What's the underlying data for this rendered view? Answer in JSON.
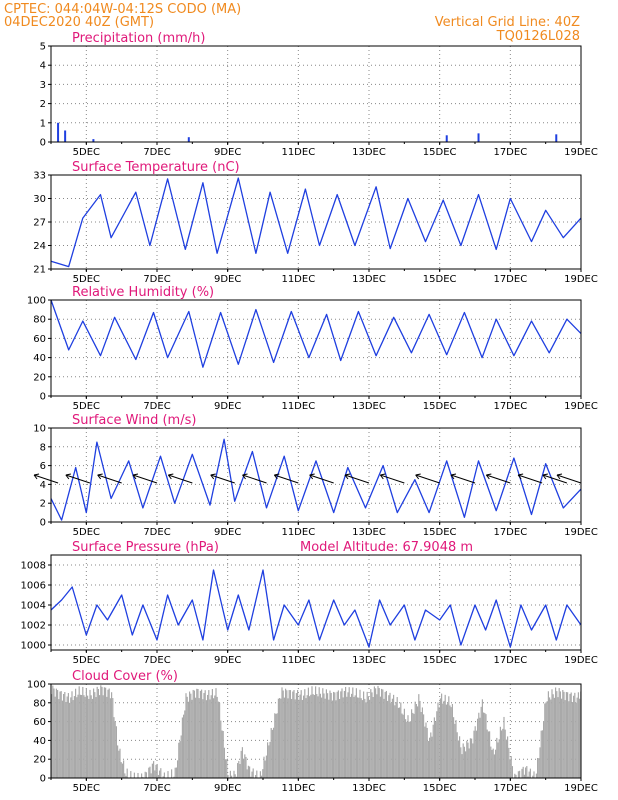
{
  "header": {
    "line1": "CPTEC:   044:04W-04:12S   CODO (MA)",
    "line2": "04DEC2020 40Z (GMT)",
    "right1": "Vertical Grid Line: 40Z",
    "right2": "TQ0126L028"
  },
  "colors": {
    "header": "#f08a1f",
    "title": "#e0197a",
    "line": "#1f3fe0",
    "cloud": "#a9a9a9",
    "grid": "#888888"
  },
  "chart_data": [
    {
      "id": "precip",
      "type": "bar",
      "title": "Precipitation (mm/h)",
      "ylim": [
        0,
        5
      ],
      "yticks": [
        "0",
        "1",
        "2",
        "3",
        "4",
        "5"
      ],
      "xticks": [
        "5DEC",
        "7DEC",
        "9DEC",
        "11DEC",
        "13DEC",
        "15DEC",
        "17DEC",
        "19DEC"
      ],
      "x": [
        4.2,
        4.4,
        5.2,
        7.9,
        15.2,
        16.1,
        18.3
      ],
      "values": [
        1.0,
        0.6,
        0.15,
        0.25,
        0.35,
        0.45,
        0.4
      ]
    },
    {
      "id": "temp",
      "type": "line",
      "title": "Surface Temperature (nC)",
      "ylim": [
        21,
        33
      ],
      "yticks": [
        "21",
        "24",
        "27",
        "30",
        "33"
      ],
      "xticks": [
        "5DEC",
        "7DEC",
        "9DEC",
        "11DEC",
        "13DEC",
        "15DEC",
        "17DEC",
        "19DEC"
      ],
      "x": [
        4.0,
        4.5,
        4.9,
        5.4,
        5.7,
        6.4,
        6.8,
        7.3,
        7.8,
        8.3,
        8.7,
        9.3,
        9.8,
        10.2,
        10.7,
        11.2,
        11.6,
        12.1,
        12.6,
        13.2,
        13.6,
        14.1,
        14.6,
        15.1,
        15.6,
        16.1,
        16.6,
        17.0,
        17.6,
        18.0,
        18.5,
        19.0
      ],
      "values": [
        22,
        21.3,
        27.5,
        30.5,
        25,
        30.8,
        24,
        32.5,
        23.5,
        32,
        23,
        32.6,
        23,
        30.8,
        23,
        31.2,
        24,
        30.5,
        24,
        31.5,
        23.6,
        30,
        24.5,
        29.8,
        24,
        30.5,
        23.5,
        30,
        24.5,
        28.5,
        25,
        27.5
      ]
    },
    {
      "id": "rh",
      "type": "line",
      "title": "Relative Humidity (%)",
      "ylim": [
        0,
        100
      ],
      "yticks": [
        "0",
        "20",
        "40",
        "60",
        "80",
        "100"
      ],
      "xticks": [
        "5DEC",
        "7DEC",
        "9DEC",
        "11DEC",
        "13DEC",
        "15DEC",
        "17DEC",
        "19DEC"
      ],
      "x": [
        4.0,
        4.5,
        4.9,
        5.4,
        5.8,
        6.4,
        6.9,
        7.3,
        7.9,
        8.3,
        8.8,
        9.3,
        9.8,
        10.3,
        10.8,
        11.3,
        11.8,
        12.2,
        12.7,
        13.2,
        13.7,
        14.2,
        14.7,
        15.2,
        15.7,
        16.2,
        16.6,
        17.1,
        17.6,
        18.1,
        18.6,
        19.0
      ],
      "values": [
        100,
        48,
        78,
        42,
        82,
        38,
        87,
        40,
        88,
        30,
        87,
        33,
        90,
        35,
        88,
        40,
        85,
        37,
        88,
        42,
        82,
        45,
        85,
        43,
        87,
        40,
        80,
        42,
        78,
        45,
        80,
        65
      ]
    },
    {
      "id": "wind",
      "type": "line",
      "title": "Surface Wind (m/s)",
      "ylim": [
        0,
        10
      ],
      "yticks": [
        "0",
        "2",
        "4",
        "6",
        "8",
        "10"
      ],
      "xticks": [
        "5DEC",
        "7DEC",
        "9DEC",
        "11DEC",
        "13DEC",
        "15DEC",
        "17DEC",
        "19DEC"
      ],
      "x": [
        4.0,
        4.3,
        4.7,
        5.0,
        5.3,
        5.7,
        6.2,
        6.6,
        7.1,
        7.5,
        8.0,
        8.5,
        8.9,
        9.2,
        9.7,
        10.1,
        10.6,
        11.0,
        11.5,
        12.0,
        12.4,
        12.9,
        13.4,
        13.8,
        14.3,
        14.7,
        15.2,
        15.7,
        16.1,
        16.6,
        17.1,
        17.6,
        18.0,
        18.5,
        19.0
      ],
      "values": [
        2.5,
        0.2,
        5.8,
        1.0,
        8.5,
        2.5,
        6.5,
        1.5,
        7.0,
        2.0,
        7.2,
        1.8,
        8.8,
        2.2,
        7.5,
        1.5,
        7.0,
        1.2,
        6.5,
        1.0,
        5.8,
        1.5,
        6.0,
        1.0,
        4.5,
        1.0,
        6.5,
        0.5,
        6.5,
        1.2,
        6.8,
        0.8,
        6.2,
        1.5,
        3.5
      ]
    },
    {
      "id": "pres",
      "type": "line",
      "title": "Surface Pressure (hPa)",
      "annotation": "Model Altitude: 67.9048 m",
      "ylim": [
        999.5,
        1009
      ],
      "yticks": [
        "1000",
        "1002",
        "1004",
        "1006",
        "1008"
      ],
      "xticks": [
        "5DEC",
        "7DEC",
        "9DEC",
        "11DEC",
        "13DEC",
        "15DEC",
        "17DEC",
        "19DEC"
      ],
      "x": [
        4.0,
        4.3,
        4.6,
        5.0,
        5.3,
        5.6,
        6.0,
        6.3,
        6.6,
        7.0,
        7.3,
        7.6,
        8.0,
        8.3,
        8.6,
        9.0,
        9.3,
        9.6,
        10.0,
        10.3,
        10.6,
        11.0,
        11.3,
        11.6,
        12.0,
        12.3,
        12.6,
        13.0,
        13.3,
        13.6,
        14.0,
        14.3,
        14.6,
        15.0,
        15.3,
        15.6,
        16.0,
        16.3,
        16.6,
        17.0,
        17.3,
        17.6,
        18.0,
        18.3,
        18.6,
        19.0
      ],
      "values": [
        1003.5,
        1004.5,
        1005.8,
        1001,
        1004,
        1002.5,
        1005,
        1001,
        1004,
        1000.5,
        1005,
        1002,
        1004.5,
        1000.5,
        1007.5,
        1001.5,
        1005,
        1001.5,
        1007.5,
        1000.5,
        1004,
        1002,
        1004.5,
        1000.5,
        1004.5,
        1002,
        1003.5,
        999.8,
        1004.5,
        1002,
        1004,
        1000.5,
        1003.5,
        1002.5,
        1004,
        1000,
        1004,
        1001.5,
        1004.5,
        999.8,
        1004,
        1001.5,
        1004,
        1000.5,
        1004,
        1002
      ]
    },
    {
      "id": "cloud",
      "type": "area",
      "title": "Cloud Cover (%)",
      "ylim": [
        0,
        100
      ],
      "yticks": [
        "0",
        "20",
        "40",
        "60",
        "80",
        "100"
      ],
      "xticks": [
        "5DEC",
        "7DEC",
        "9DEC",
        "11DEC",
        "13DEC",
        "15DEC",
        "17DEC",
        "19DEC"
      ],
      "x": [
        4.0,
        4.2,
        4.5,
        4.8,
        5.1,
        5.4,
        5.7,
        5.9,
        6.1,
        6.3,
        6.6,
        6.9,
        7.2,
        7.5,
        7.8,
        8.1,
        8.4,
        8.7,
        9.0,
        9.2,
        9.4,
        9.6,
        9.9,
        10.2,
        10.5,
        10.8,
        11.1,
        11.4,
        11.7,
        12.0,
        12.3,
        12.6,
        12.9,
        13.2,
        13.5,
        13.8,
        14.1,
        14.4,
        14.7,
        15.0,
        15.3,
        15.6,
        15.9,
        16.2,
        16.5,
        16.8,
        17.1,
        17.4,
        17.7,
        18.0,
        18.3,
        18.6,
        18.9,
        19.0
      ],
      "values": [
        95,
        90,
        85,
        92,
        88,
        95,
        90,
        30,
        5,
        0,
        0,
        15,
        0,
        5,
        85,
        92,
        88,
        90,
        2,
        3,
        30,
        8,
        0,
        45,
        92,
        90,
        88,
        92,
        90,
        88,
        92,
        90,
        85,
        95,
        88,
        80,
        60,
        85,
        40,
        85,
        80,
        30,
        40,
        80,
        25,
        60,
        0,
        10,
        0,
        85,
        92,
        88,
        85,
        95
      ]
    }
  ]
}
